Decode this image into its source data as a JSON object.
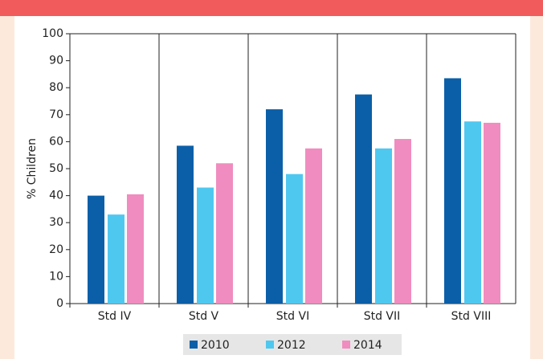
{
  "chart_data": {
    "type": "bar",
    "categories": [
      "Std IV",
      "Std V",
      "Std VI",
      "Std VII",
      "Std VIII"
    ],
    "series": [
      {
        "name": "2010",
        "color": "#0b5fa8",
        "values": [
          40,
          58.5,
          72,
          77.5,
          83.5
        ]
      },
      {
        "name": "2012",
        "color": "#4fc8f0",
        "values": [
          33,
          43,
          48,
          57.5,
          67.5
        ]
      },
      {
        "name": "2014",
        "color": "#f08cbf",
        "values": [
          40.5,
          52,
          57.5,
          61,
          67
        ]
      }
    ],
    "y_label": "% Children",
    "ylim": [
      0,
      100
    ],
    "yticks": [
      0,
      10,
      20,
      30,
      40,
      50,
      60,
      70,
      80,
      90,
      100
    ],
    "legend": "bottom"
  }
}
